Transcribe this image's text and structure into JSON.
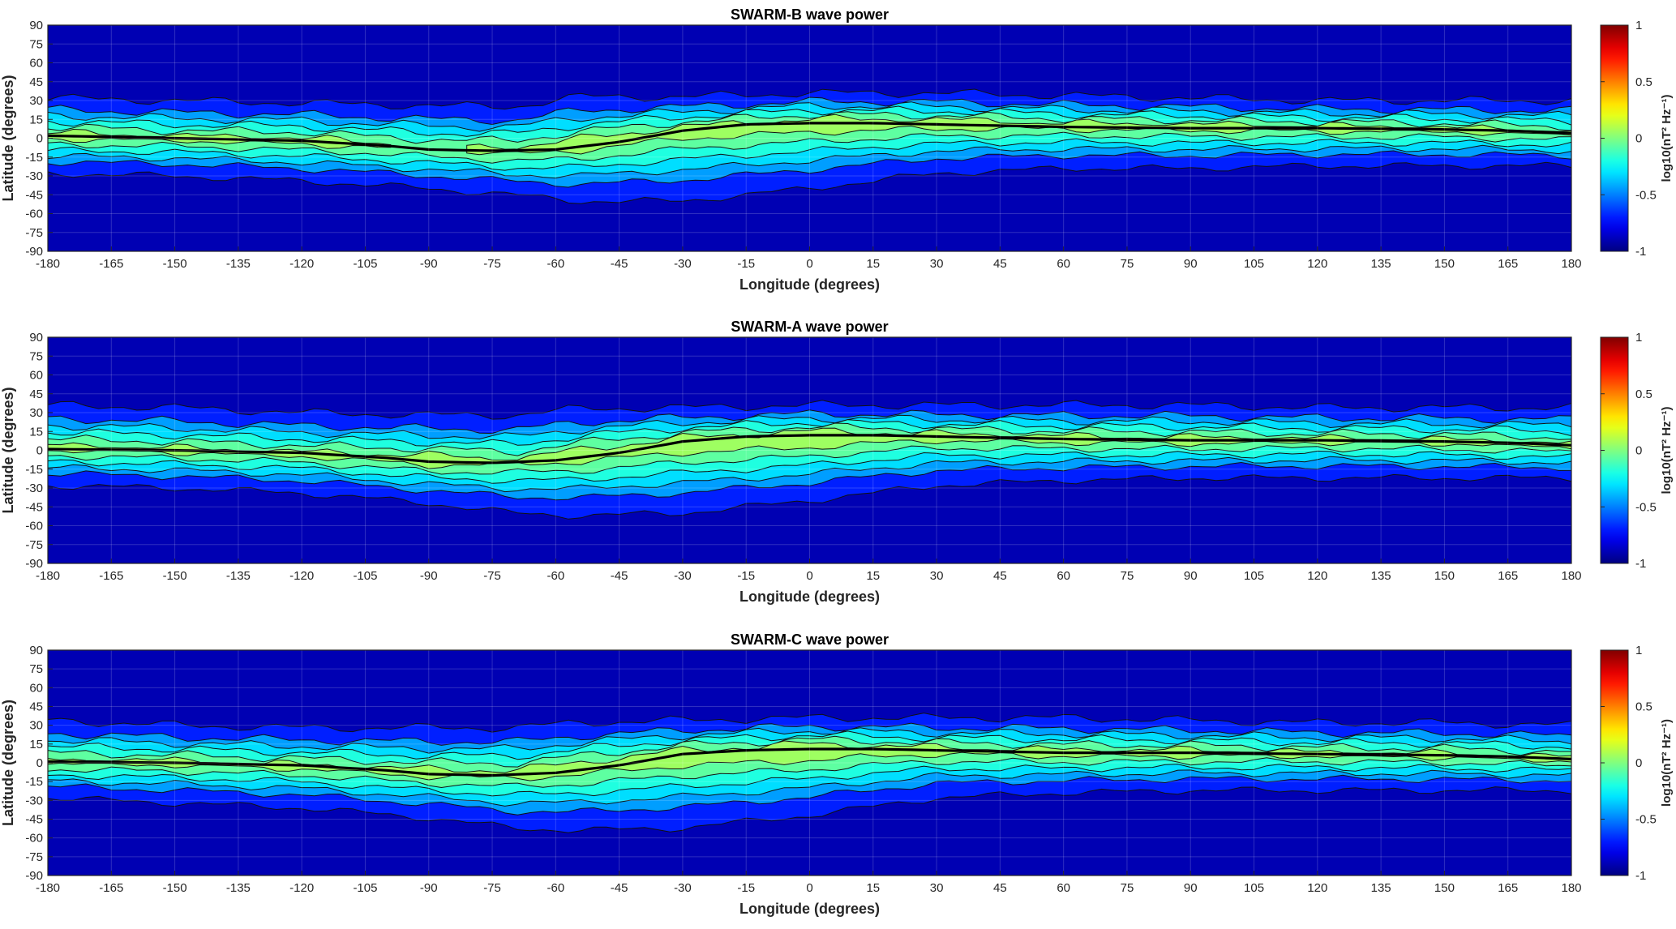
{
  "chart_data": [
    {
      "type": "heatmap",
      "title": "SWARM-B wave power",
      "xlabel": "Longitude (degrees)",
      "ylabel": "Latitude (degrees)",
      "xlim": [
        -180,
        180
      ],
      "ylim": [
        -90,
        90
      ],
      "xticks": [
        -180,
        -165,
        -150,
        -135,
        -120,
        -105,
        -90,
        -75,
        -60,
        -45,
        -30,
        -15,
        0,
        15,
        30,
        45,
        60,
        75,
        90,
        105,
        120,
        135,
        150,
        165,
        180
      ],
      "yticks": [
        90,
        75,
        60,
        45,
        30,
        15,
        0,
        -15,
        -30,
        -45,
        -60,
        -75,
        -90
      ],
      "colorbar": {
        "label": "log10(nT² Hz⁻¹)",
        "clim": [
          -1,
          1
        ],
        "ticks": [
          1,
          0.5,
          0,
          -0.5,
          -1
        ],
        "colormap": "jet"
      },
      "band": {
        "lon": [
          -180,
          -150,
          -120,
          -90,
          -70,
          -55,
          -30,
          0,
          30,
          60,
          90,
          120,
          150,
          180
        ],
        "center": [
          2,
          0,
          -2,
          -8,
          -10,
          -5,
          6,
          12,
          12,
          10,
          9,
          8,
          7,
          4
        ],
        "north_30": [
          32,
          30,
          28,
          26,
          25,
          33,
          33,
          36,
          36,
          34,
          32,
          30,
          30,
          30
        ],
        "south_30": [
          -28,
          -30,
          -34,
          -40,
          -45,
          -50,
          -50,
          -40,
          -28,
          -24,
          -24,
          -22,
          -22,
          -22
        ],
        "peak": [
          0.05,
          0.0,
          0.05,
          -0.05,
          0.05,
          0.1,
          0.1,
          0.15,
          0.1,
          0.05,
          0.05,
          0.05,
          0.0,
          0.0
        ]
      },
      "equator_line": {
        "lon": [
          -180,
          -150,
          -120,
          -100,
          -90,
          -75,
          -60,
          -45,
          -30,
          -15,
          0,
          15,
          30,
          60,
          90,
          120,
          150,
          165,
          180
        ],
        "lat": [
          2,
          0,
          -2,
          -6,
          -9,
          -10,
          -9,
          -3,
          6,
          11,
          12,
          12,
          11,
          9,
          8,
          8,
          7,
          6,
          4
        ]
      }
    },
    {
      "type": "heatmap",
      "title": "SWARM-A wave power",
      "xlabel": "Longitude (degrees)",
      "ylabel": "Latitude (degrees)",
      "xlim": [
        -180,
        180
      ],
      "ylim": [
        -90,
        90
      ],
      "xticks": [
        -180,
        -165,
        -150,
        -135,
        -120,
        -105,
        -90,
        -75,
        -60,
        -45,
        -30,
        -15,
        0,
        15,
        30,
        45,
        60,
        75,
        90,
        105,
        120,
        135,
        150,
        165,
        180
      ],
      "yticks": [
        90,
        75,
        60,
        45,
        30,
        15,
        0,
        -15,
        -30,
        -45,
        -60,
        -75,
        -90
      ],
      "colorbar": {
        "label": "log10(nT² Hz⁻¹)",
        "clim": [
          -1,
          1
        ],
        "ticks": [
          1,
          0.5,
          0,
          -0.5,
          -1
        ],
        "colormap": "jet"
      },
      "band": {
        "lon": [
          -180,
          -150,
          -120,
          -90,
          -70,
          -55,
          -30,
          0,
          30,
          60,
          90,
          120,
          150,
          180
        ],
        "center": [
          2,
          0,
          -3,
          -8,
          -9,
          -4,
          6,
          11,
          11,
          9,
          8,
          8,
          7,
          4
        ],
        "north_30": [
          36,
          34,
          30,
          28,
          28,
          33,
          34,
          36,
          36,
          36,
          36,
          34,
          34,
          34
        ],
        "south_30": [
          -28,
          -30,
          -34,
          -42,
          -50,
          -52,
          -50,
          -40,
          -28,
          -24,
          -22,
          -22,
          -22,
          -22
        ],
        "peak": [
          0.0,
          0.0,
          0.0,
          0.1,
          0.0,
          0.1,
          0.15,
          0.2,
          0.05,
          0.05,
          0.05,
          0.0,
          0.0,
          0.0
        ]
      },
      "equator_line": {
        "lon": [
          -180,
          -150,
          -120,
          -100,
          -90,
          -75,
          -60,
          -45,
          -30,
          -15,
          0,
          15,
          30,
          60,
          90,
          120,
          150,
          165,
          180
        ],
        "lat": [
          1,
          0,
          -2,
          -6,
          -9,
          -10,
          -8,
          -2,
          7,
          11,
          12,
          12,
          11,
          9,
          8,
          8,
          7,
          6,
          4
        ]
      }
    },
    {
      "type": "heatmap",
      "title": "SWARM-C wave power",
      "xlabel": "Longitude (degrees)",
      "ylabel": "Latitude (degrees)",
      "xlim": [
        -180,
        180
      ],
      "ylim": [
        -90,
        90
      ],
      "xticks": [
        -180,
        -165,
        -150,
        -135,
        -120,
        -105,
        -90,
        -75,
        -60,
        -45,
        -30,
        -15,
        0,
        15,
        30,
        45,
        60,
        75,
        90,
        105,
        120,
        135,
        150,
        165,
        180
      ],
      "yticks": [
        90,
        75,
        60,
        45,
        30,
        15,
        0,
        -15,
        -30,
        -45,
        -60,
        -75,
        -90
      ],
      "colorbar": {
        "label": "log10(nT² Hz⁻¹)",
        "clim": [
          -1,
          1
        ],
        "ticks": [
          1,
          0.5,
          0,
          -0.5,
          -1
        ],
        "colormap": "jet"
      },
      "band": {
        "lon": [
          -180,
          -150,
          -120,
          -90,
          -70,
          -55,
          -30,
          0,
          30,
          60,
          90,
          120,
          150,
          180
        ],
        "center": [
          1,
          0,
          -3,
          -8,
          -9,
          -4,
          6,
          11,
          10,
          8,
          8,
          7,
          6,
          3
        ],
        "north_30": [
          34,
          30,
          28,
          28,
          28,
          32,
          34,
          36,
          36,
          36,
          34,
          32,
          32,
          30
        ],
        "south_30": [
          -28,
          -32,
          -36,
          -44,
          -52,
          -54,
          -52,
          -42,
          -28,
          -24,
          -22,
          -22,
          -22,
          -22
        ],
        "peak": [
          0.0,
          0.0,
          0.0,
          0.05,
          0.05,
          0.1,
          0.15,
          0.2,
          0.05,
          0.05,
          0.05,
          0.0,
          0.0,
          0.0
        ]
      },
      "equator_line": {
        "lon": [
          -180,
          -150,
          -120,
          -100,
          -90,
          -75,
          -60,
          -45,
          -30,
          -15,
          0,
          15,
          30,
          60,
          90,
          120,
          150,
          165,
          180
        ],
        "lat": [
          1,
          0,
          -2,
          -6,
          -9,
          -10,
          -8,
          -2,
          7,
          10,
          11,
          11,
          10,
          8,
          8,
          7,
          6,
          5,
          3
        ]
      }
    }
  ]
}
